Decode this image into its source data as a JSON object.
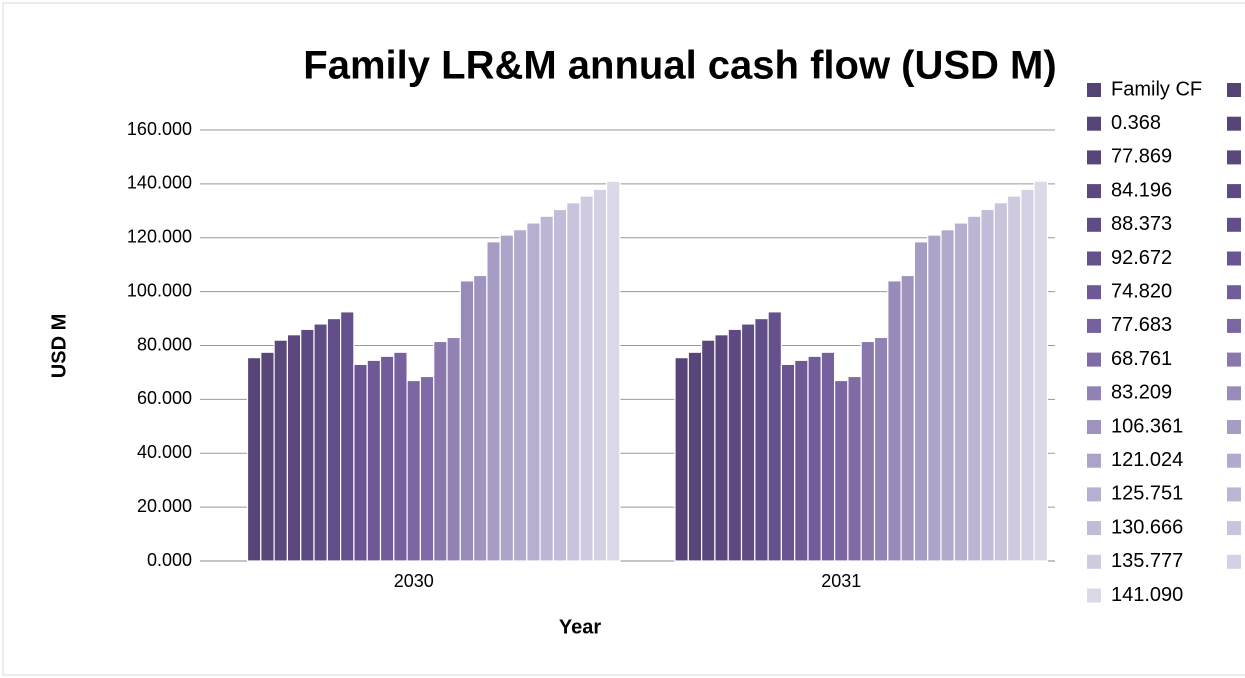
{
  "chart_data": {
    "type": "bar",
    "title": "Family LR&M annual cash flow (USD M)",
    "x_label": "Year",
    "y_label": "USD M",
    "categories": [
      "2030",
      "2031"
    ],
    "ylim": [
      0,
      160
    ],
    "yticks": [
      {
        "value": 0,
        "label": "0.000"
      },
      {
        "value": 20,
        "label": "20.000"
      },
      {
        "value": 40,
        "label": "40.000"
      },
      {
        "value": 60,
        "label": "60.000"
      },
      {
        "value": 80,
        "label": "80.000"
      },
      {
        "value": 100,
        "label": "100.000"
      },
      {
        "value": 120,
        "label": "120.000"
      },
      {
        "value": 140,
        "label": "140.000"
      },
      {
        "value": 160,
        "label": "160.000"
      }
    ],
    "grid": true,
    "legend": "right",
    "series": [
      {
        "name": "Family CF",
        "color": "#554372",
        "values": [
          0,
          0
        ]
      },
      {
        "name": null,
        "color": "#554372",
        "values": [
          0,
          0
        ]
      },
      {
        "name": "0.368",
        "color": "#574577",
        "values": [
          0,
          0
        ]
      },
      {
        "name": null,
        "color": "#574577",
        "values": [
          75.5,
          75.5
        ]
      },
      {
        "name": "77.869",
        "color": "#594679",
        "values": [
          77.5,
          77.5
        ]
      },
      {
        "name": null,
        "color": "#5a477c",
        "values": [
          82,
          82
        ]
      },
      {
        "name": "84.196",
        "color": "#5c487f",
        "values": [
          84,
          84
        ]
      },
      {
        "name": null,
        "color": "#5e4a82",
        "values": [
          86,
          86
        ]
      },
      {
        "name": "88.373",
        "color": "#604c85",
        "values": [
          88,
          88
        ]
      },
      {
        "name": null,
        "color": "#624e88",
        "values": [
          90,
          90
        ]
      },
      {
        "name": "92.672",
        "color": "#64508b",
        "values": [
          92.5,
          92.5
        ]
      },
      {
        "name": null,
        "color": "#6a5592",
        "values": [
          73,
          73
        ]
      },
      {
        "name": "74.820",
        "color": "#6e5996",
        "values": [
          74.5,
          74.5
        ]
      },
      {
        "name": null,
        "color": "#725d9a",
        "values": [
          76,
          76
        ]
      },
      {
        "name": "77.683",
        "color": "#76619e",
        "values": [
          77.5,
          77.5
        ]
      },
      {
        "name": null,
        "color": "#7b66a2",
        "values": [
          67,
          67
        ]
      },
      {
        "name": "68.761",
        "color": "#806ba6",
        "values": [
          68.5,
          68.5
        ]
      },
      {
        "name": null,
        "color": "#8a78ad",
        "values": [
          81.5,
          81.5
        ]
      },
      {
        "name": "83.209",
        "color": "#9283b4",
        "values": [
          83,
          83
        ]
      },
      {
        "name": null,
        "color": "#998bb9",
        "values": [
          104,
          104
        ]
      },
      {
        "name": "106.361",
        "color": "#a093be",
        "values": [
          106,
          106
        ]
      },
      {
        "name": null,
        "color": "#a79cc3",
        "values": [
          118.5,
          118.5
        ]
      },
      {
        "name": "121.024",
        "color": "#ada3c8",
        "values": [
          121,
          121
        ]
      },
      {
        "name": null,
        "color": "#b2a9cc",
        "values": [
          123,
          123
        ]
      },
      {
        "name": "125.751",
        "color": "#b7afd0",
        "values": [
          125.5,
          125.5
        ]
      },
      {
        "name": null,
        "color": "#bdb5d4",
        "values": [
          128,
          128
        ]
      },
      {
        "name": "130.666",
        "color": "#c3bcd8",
        "values": [
          130.5,
          130.5
        ]
      },
      {
        "name": null,
        "color": "#c9c3dc",
        "values": [
          133,
          133
        ]
      },
      {
        "name": "135.777",
        "color": "#cfcae0",
        "values": [
          135.5,
          135.5
        ]
      },
      {
        "name": null,
        "color": "#d5d1e4",
        "values": [
          138,
          138
        ]
      },
      {
        "name": "141.090",
        "color": "#dbd8e8",
        "values": [
          141,
          141
        ]
      }
    ]
  }
}
